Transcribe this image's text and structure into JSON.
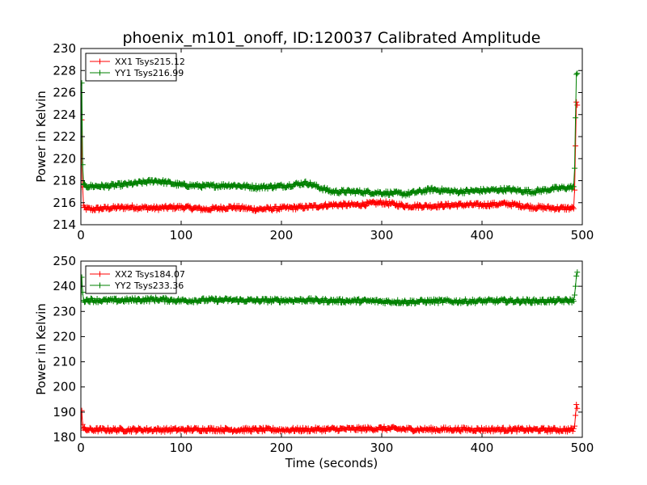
{
  "figure": {
    "title": "phoenix_m101_onoff, ID:120037 Calibrated Amplitude"
  },
  "chart_data": [
    {
      "type": "line",
      "title": "phoenix_m101_onoff, ID:120037 Calibrated Amplitude",
      "xlabel": "",
      "ylabel": "Power in Kelvin",
      "xlim": [
        0,
        500
      ],
      "ylim": [
        214,
        230
      ],
      "xticks": [
        0,
        100,
        200,
        300,
        400,
        500
      ],
      "yticks": [
        214,
        216,
        218,
        220,
        222,
        224,
        226,
        228,
        230
      ],
      "xtick_labels": [
        "0",
        "100",
        "200",
        "300",
        "400",
        "500"
      ],
      "ytick_labels": [
        "214",
        "216",
        "218",
        "220",
        "222",
        "224",
        "226",
        "228",
        "230"
      ],
      "grid": false,
      "legend_position": "top-left",
      "marker": "+",
      "series": [
        {
          "name": "XX1 Tsys215.12",
          "color": "#ff0000",
          "x": [
            0,
            1,
            2,
            4,
            10,
            25,
            50,
            75,
            100,
            125,
            150,
            175,
            200,
            225,
            250,
            275,
            300,
            325,
            350,
            375,
            400,
            425,
            450,
            475,
            490,
            492,
            494,
            495
          ],
          "y": [
            215.5,
            224.5,
            215.6,
            215.5,
            215.4,
            215.5,
            215.6,
            215.5,
            215.6,
            215.4,
            215.6,
            215.4,
            215.5,
            215.6,
            215.8,
            215.8,
            216.0,
            215.7,
            215.7,
            215.8,
            215.8,
            215.9,
            215.6,
            215.5,
            215.5,
            215.6,
            225.0,
            224.8
          ]
        },
        {
          "name": "YY1 Tsys216.99",
          "color": "#008000",
          "x": [
            0,
            1,
            2,
            4,
            10,
            25,
            50,
            75,
            100,
            125,
            150,
            175,
            200,
            225,
            250,
            275,
            300,
            325,
            350,
            375,
            400,
            425,
            450,
            475,
            490,
            492,
            494,
            495
          ],
          "y": [
            217.5,
            227.8,
            217.6,
            217.5,
            217.5,
            217.5,
            217.7,
            218.0,
            217.6,
            217.5,
            217.6,
            217.4,
            217.5,
            217.8,
            217.0,
            217.0,
            216.9,
            216.8,
            217.2,
            217.0,
            217.1,
            217.2,
            217.0,
            217.3,
            217.4,
            217.5,
            227.6,
            227.9
          ]
        }
      ]
    },
    {
      "type": "line",
      "title": "",
      "xlabel": "Time (seconds)",
      "ylabel": "Power in Kelvin",
      "xlim": [
        0,
        500
      ],
      "ylim": [
        180,
        250
      ],
      "xticks": [
        0,
        100,
        200,
        300,
        400,
        500
      ],
      "yticks": [
        180,
        190,
        200,
        210,
        220,
        230,
        240,
        250
      ],
      "xtick_labels": [
        "0",
        "100",
        "200",
        "300",
        "400",
        "500"
      ],
      "ytick_labels": [
        "180",
        "190",
        "200",
        "210",
        "220",
        "230",
        "240",
        "250"
      ],
      "grid": false,
      "legend_position": "top-left",
      "marker": "+",
      "series": [
        {
          "name": "XX2 Tsys184.07",
          "color": "#ff0000",
          "x": [
            0,
            1,
            2,
            4,
            10,
            25,
            50,
            75,
            100,
            125,
            150,
            175,
            200,
            225,
            250,
            275,
            300,
            325,
            350,
            375,
            400,
            425,
            450,
            475,
            490,
            492,
            494,
            495
          ],
          "y": [
            183,
            192,
            183.5,
            183,
            183,
            183,
            183,
            183,
            183,
            183.2,
            183,
            183,
            183,
            183,
            183.2,
            183.3,
            183.5,
            183.2,
            183.1,
            183.2,
            183.1,
            183.1,
            183.0,
            183.0,
            183.0,
            183.1,
            192.5,
            192.0
          ]
        },
        {
          "name": "YY2 Tsys233.36",
          "color": "#008000",
          "x": [
            0,
            1,
            2,
            4,
            10,
            25,
            50,
            75,
            100,
            125,
            150,
            175,
            200,
            225,
            250,
            275,
            300,
            325,
            350,
            375,
            400,
            425,
            450,
            475,
            490,
            492,
            494,
            495
          ],
          "y": [
            234.5,
            245,
            234.8,
            234.5,
            234.5,
            234.3,
            234.5,
            234.8,
            234.3,
            234.5,
            234.5,
            234.3,
            234.4,
            234.5,
            234.2,
            234.2,
            234.0,
            233.8,
            234.1,
            234.0,
            234.1,
            234.2,
            234.1,
            234.2,
            234.3,
            234.3,
            244.8,
            245.2
          ]
        }
      ]
    }
  ]
}
